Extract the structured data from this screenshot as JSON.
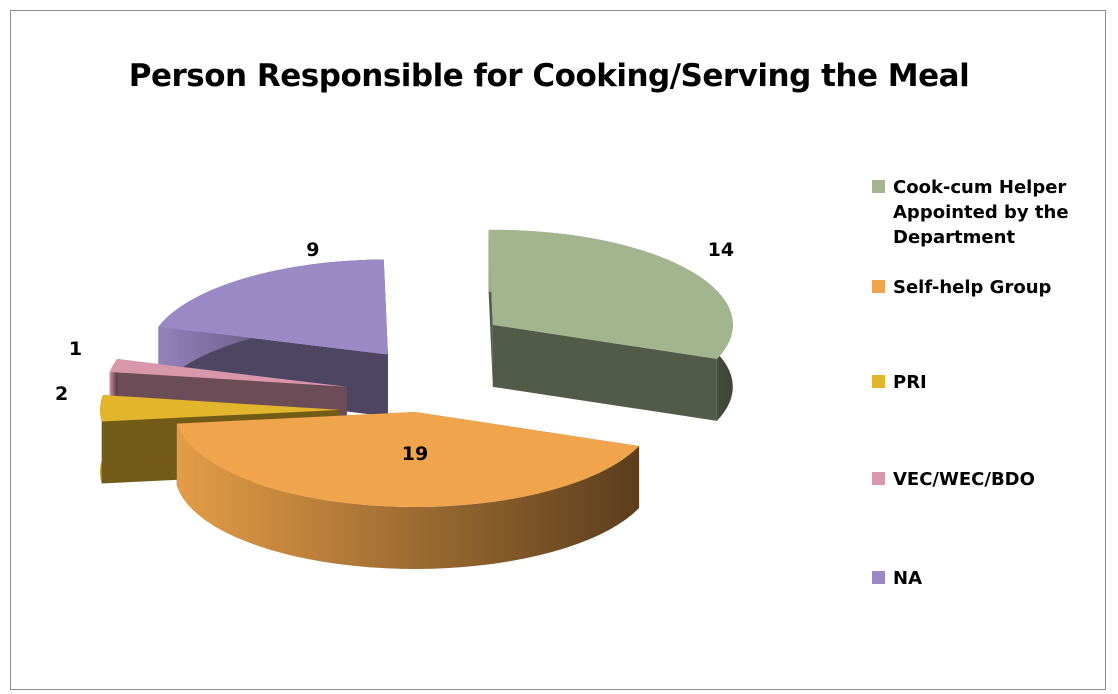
{
  "chart_data": {
    "type": "pie",
    "title": "Person Responsible for Cooking/Serving the Meal",
    "categories": [
      "Cook-cum Helper Appointed by the Department",
      "Self-help Group",
      "PRI",
      "VEC/WEC/BDO",
      "NA"
    ],
    "values": [
      14,
      19,
      2,
      1,
      9
    ],
    "colors": [
      "#a3b58f",
      "#f0a44b",
      "#e3b52d",
      "#d897ab",
      "#9b89c6"
    ],
    "style": "3d-exploded",
    "legend_position": "right",
    "data_labels": true
  }
}
